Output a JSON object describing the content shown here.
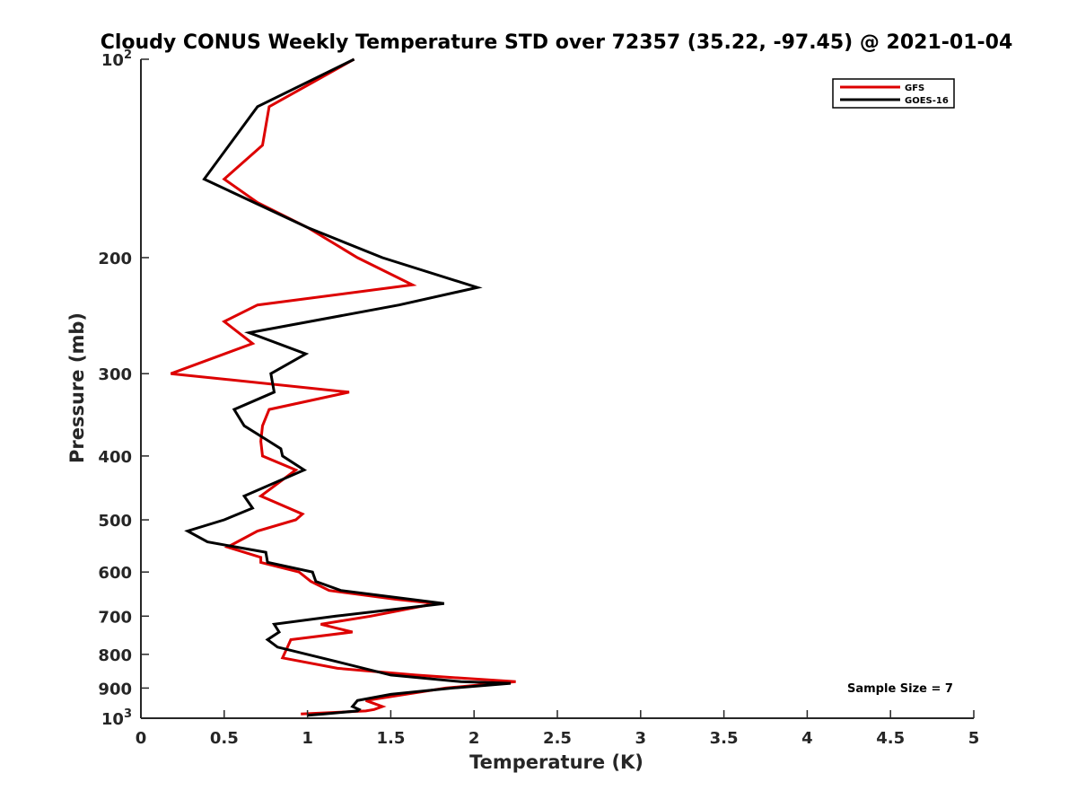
{
  "chart_data": {
    "type": "line",
    "title": "Cloudy CONUS Weekly Temperature STD over 72357 (35.22, -97.45) @ 2021-01-04",
    "xlabel": "Temperature (K)",
    "ylabel": "Pressure (mb)",
    "xlim": [
      0,
      5
    ],
    "ylim": [
      100,
      1000
    ],
    "y_scale": "log",
    "y_reversed": true,
    "x_ticks": [
      "0",
      "0.5",
      "1",
      "1.5",
      "2",
      "2.5",
      "3",
      "3.5",
      "4",
      "4.5",
      "5"
    ],
    "y_ticks": [
      {
        "value": 100,
        "base": "10",
        "exp": "2"
      },
      {
        "value": 200,
        "label": "200"
      },
      {
        "value": 300,
        "label": "300"
      },
      {
        "value": 400,
        "label": "400"
      },
      {
        "value": 500,
        "label": "500"
      },
      {
        "value": 600,
        "label": "600"
      },
      {
        "value": 700,
        "label": "700"
      },
      {
        "value": 800,
        "label": "800"
      },
      {
        "value": 900,
        "label": "900"
      },
      {
        "value": 1000,
        "base": "10",
        "exp": "3"
      }
    ],
    "grid": false,
    "legend_position": "top-right",
    "annotation": "Sample Size = 7",
    "series": [
      {
        "name": "GFS",
        "color": "#dd0000",
        "points": [
          [
            1.28,
            100
          ],
          [
            0.77,
            118
          ],
          [
            0.73,
            135
          ],
          [
            0.5,
            152
          ],
          [
            0.7,
            165
          ],
          [
            1.0,
            180
          ],
          [
            1.3,
            200
          ],
          [
            1.63,
            220
          ],
          [
            0.7,
            236
          ],
          [
            0.5,
            250
          ],
          [
            0.67,
            270
          ],
          [
            0.18,
            300
          ],
          [
            1.25,
            320
          ],
          [
            0.77,
            340
          ],
          [
            0.73,
            360
          ],
          [
            0.72,
            380
          ],
          [
            0.73,
            400
          ],
          [
            0.93,
            420
          ],
          [
            0.72,
            460
          ],
          [
            0.97,
            490
          ],
          [
            0.93,
            500
          ],
          [
            0.7,
            520
          ],
          [
            0.52,
            550
          ],
          [
            0.72,
            570
          ],
          [
            0.72,
            580
          ],
          [
            0.95,
            600
          ],
          [
            1.02,
            620
          ],
          [
            1.13,
            640
          ],
          [
            1.53,
            660
          ],
          [
            1.77,
            670
          ],
          [
            1.38,
            700
          ],
          [
            1.08,
            720
          ],
          [
            1.27,
            740
          ],
          [
            0.9,
            760
          ],
          [
            0.88,
            780
          ],
          [
            0.85,
            810
          ],
          [
            1.18,
            840
          ],
          [
            1.65,
            860
          ],
          [
            2.25,
            880
          ],
          [
            1.83,
            900
          ],
          [
            1.35,
            940
          ],
          [
            1.45,
            960
          ],
          [
            1.4,
            970
          ],
          [
            1.35,
            975
          ],
          [
            0.96,
            985
          ]
        ]
      },
      {
        "name": "GOES-16",
        "color": "#000000",
        "points": [
          [
            1.28,
            100
          ],
          [
            0.7,
            118
          ],
          [
            0.38,
            152
          ],
          [
            1.0,
            180
          ],
          [
            1.45,
            200
          ],
          [
            2.02,
            222
          ],
          [
            1.55,
            236
          ],
          [
            0.65,
            260
          ],
          [
            0.99,
            280
          ],
          [
            0.78,
            300
          ],
          [
            0.8,
            320
          ],
          [
            0.56,
            340
          ],
          [
            0.62,
            360
          ],
          [
            0.77,
            380
          ],
          [
            0.84,
            390
          ],
          [
            0.85,
            400
          ],
          [
            0.98,
            420
          ],
          [
            0.62,
            460
          ],
          [
            0.67,
            480
          ],
          [
            0.5,
            500
          ],
          [
            0.28,
            520
          ],
          [
            0.4,
            540
          ],
          [
            0.75,
            560
          ],
          [
            0.76,
            580
          ],
          [
            1.03,
            600
          ],
          [
            1.05,
            620
          ],
          [
            1.2,
            640
          ],
          [
            1.82,
            670
          ],
          [
            1.17,
            700
          ],
          [
            0.8,
            720
          ],
          [
            0.83,
            740
          ],
          [
            0.76,
            760
          ],
          [
            0.82,
            780
          ],
          [
            1.17,
            820
          ],
          [
            1.5,
            860
          ],
          [
            1.92,
            880
          ],
          [
            2.22,
            885
          ],
          [
            1.87,
            900
          ],
          [
            1.5,
            920
          ],
          [
            1.3,
            940
          ],
          [
            1.27,
            960
          ],
          [
            1.31,
            970
          ],
          [
            1.3,
            975
          ],
          [
            1.1,
            985
          ],
          [
            1.0,
            990
          ]
        ]
      }
    ]
  }
}
